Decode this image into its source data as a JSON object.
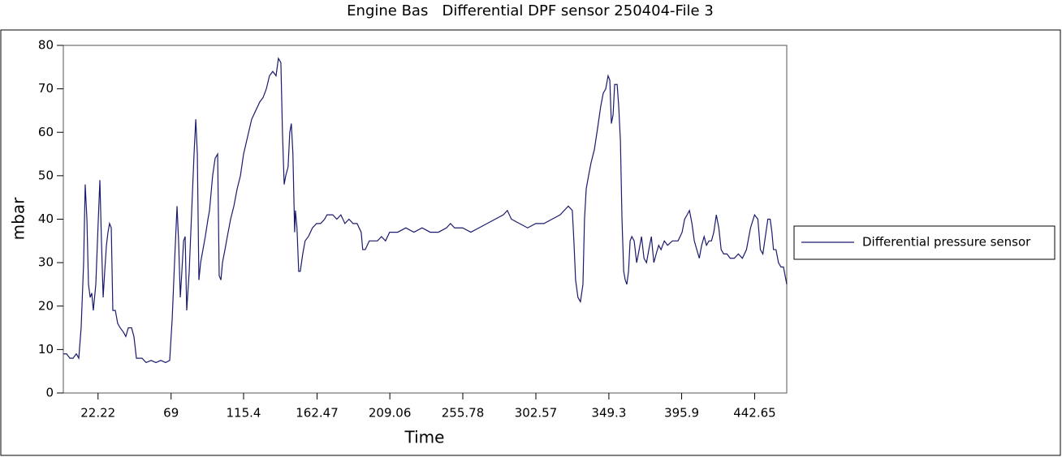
{
  "chart_data": {
    "type": "line",
    "title": "Engine Bas   Differential DPF sensor 250404-File 3",
    "x_label": "Time",
    "y_label": "mbar",
    "xlim": [
      0,
      463.2
    ],
    "ylim": [
      0,
      80
    ],
    "xticks": [
      22.22,
      69,
      115.4,
      162.47,
      209.06,
      255.78,
      302.57,
      349.3,
      395.9,
      442.65
    ],
    "yticks": [
      0,
      10,
      20,
      30,
      40,
      50,
      60,
      70,
      80
    ],
    "grid": false,
    "legend": "right",
    "x": [
      0,
      2.1,
      4.2,
      6.2,
      8.3,
      9.9,
      11.4,
      13,
      14,
      15.1,
      16.1,
      17.2,
      18.2,
      19.2,
      20.8,
      22.4,
      23.4,
      24.4,
      25.5,
      26.5,
      27.6,
      28.6,
      29.6,
      30.7,
      31.7,
      33.3,
      34.8,
      36.4,
      38.5,
      40,
      41.6,
      43.7,
      45.2,
      46.8,
      50.4,
      53,
      56.2,
      59.3,
      62.4,
      65.5,
      68.1,
      69.7,
      71.2,
      72.8,
      73.8,
      74.9,
      75.9,
      77,
      78,
      79,
      80.6,
      82.2,
      83.7,
      84.8,
      85.8,
      86.8,
      87.9,
      89.4,
      90.9,
      92.6,
      93.6,
      95.6,
      97.2,
      98.8,
      99.8,
      100.9,
      101.9,
      103.5,
      105,
      107.1,
      109.2,
      111.3,
      113.4,
      115.4,
      118,
      120.6,
      123.2,
      125.8,
      127.9,
      130,
      132,
      134.1,
      136.2,
      137.7,
      139.3,
      140.3,
      141.4,
      142.4,
      143.9,
      145,
      146,
      147,
      148.1,
      148.6,
      149.6,
      150.7,
      151.7,
      153.3,
      154.8,
      156.9,
      159.5,
      162.1,
      164.7,
      167.3,
      168.8,
      172.5,
      175.1,
      177.7,
      180.3,
      182.9,
      185.5,
      188.1,
      190.7,
      191.7,
      193.3,
      195.9,
      198.5,
      201.1,
      203.7,
      206.3,
      208.9,
      214.1,
      219.3,
      224.5,
      229.7,
      234.9,
      240.1,
      245.3,
      247.9,
      250.5,
      255.7,
      260.9,
      266.1,
      271.3,
      276.5,
      281.7,
      284.3,
      286.9,
      292.1,
      297.3,
      302.5,
      307.7,
      312.9,
      318.1,
      320.7,
      323.3,
      325.9,
      326.9,
      328,
      329.5,
      331.1,
      332.7,
      333.7,
      334.8,
      336.3,
      337.9,
      340,
      342.1,
      344.1,
      345.7,
      347.3,
      348.8,
      349.9,
      350.9,
      352,
      353,
      354.6,
      355.6,
      356.7,
      357.7,
      358.8,
      359.8,
      360.8,
      361.9,
      362.9,
      364,
      365.5,
      367.1,
      368.7,
      370.2,
      371.8,
      373.4,
      374.9,
      376.5,
      378.1,
      379.6,
      381.2,
      382.7,
      384.8,
      386.9,
      390,
      393.6,
      396.2,
      397.8,
      399.4,
      400.9,
      402.5,
      404,
      405.6,
      407.2,
      408.7,
      410.3,
      411.8,
      413.4,
      415,
      416.5,
      418.1,
      419.7,
      421.2,
      422.8,
      424.9,
      427,
      429.6,
      432.2,
      434.8,
      437.4,
      440,
      442.6,
      444.7,
      446.3,
      447.9,
      449.5,
      451.1,
      452.6,
      453.7,
      454.7,
      456.3,
      457.9,
      459.5,
      461.1,
      463.2
    ],
    "series": [
      {
        "name": "Differential pressure sensor",
        "color": "#1a1a6e",
        "values": [
          9,
          9,
          8,
          8,
          9,
          8,
          15,
          30,
          48,
          40,
          25,
          22,
          23,
          19,
          25,
          40,
          49,
          35,
          22,
          28,
          34,
          37,
          39,
          38,
          19,
          19,
          16,
          15,
          14,
          13,
          15,
          15,
          13,
          8,
          8,
          7,
          7.5,
          7,
          7.5,
          7,
          7.5,
          17,
          30,
          43,
          35,
          22,
          28,
          35,
          36,
          19,
          28,
          42,
          55,
          63,
          55,
          26,
          30,
          33,
          36,
          40,
          42,
          50,
          54,
          55,
          27,
          26,
          30,
          33,
          36,
          40,
          43,
          47,
          50,
          55,
          59,
          63,
          65,
          67,
          68,
          70,
          73,
          74,
          73,
          77,
          76,
          60,
          48,
          50,
          52,
          60,
          62,
          55,
          37,
          42,
          38,
          28,
          28,
          32,
          35,
          36,
          38,
          39,
          39,
          40,
          41,
          41,
          40,
          41,
          39,
          40,
          39,
          39,
          37,
          33,
          33,
          35,
          35,
          35,
          36,
          35,
          37,
          37,
          38,
          37,
          38,
          37,
          37,
          38,
          39,
          38,
          38,
          37,
          38,
          39,
          40,
          41,
          42,
          40,
          39,
          38,
          39,
          39,
          40,
          41,
          42,
          43,
          42,
          35,
          26,
          22,
          21,
          25,
          40,
          47,
          50,
          53,
          56,
          61,
          66,
          69,
          70,
          73,
          72,
          62,
          64,
          71,
          71,
          66,
          58,
          40,
          28,
          26,
          25,
          28,
          35,
          36,
          35,
          30,
          33,
          36,
          31,
          30,
          33,
          36,
          30,
          32,
          34,
          33,
          35,
          34,
          35,
          35,
          37,
          40,
          41,
          42,
          39,
          35,
          33,
          31,
          34,
          36,
          34,
          35,
          35,
          37,
          41,
          38,
          33,
          32,
          32,
          31,
          31,
          32,
          31,
          33,
          38,
          41,
          40,
          33,
          32,
          36,
          40,
          40,
          37,
          33,
          33,
          30,
          29,
          29,
          25
        ]
      }
    ]
  }
}
